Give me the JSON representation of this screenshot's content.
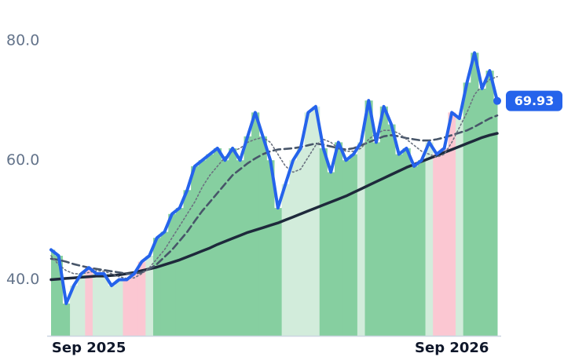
{
  "chart_data": {
    "type": "line",
    "categories": [
      null,
      null,
      null,
      null,
      null,
      "Sep 2025",
      null,
      null,
      null,
      null,
      null,
      null,
      null,
      null,
      null,
      null,
      null,
      null,
      null,
      null,
      null,
      null,
      null,
      null,
      null,
      null,
      null,
      null,
      null,
      null,
      null,
      null,
      null,
      null,
      null,
      null,
      null,
      null,
      null,
      null,
      null,
      null,
      null,
      null,
      null,
      null,
      null,
      null,
      null,
      null,
      null,
      null,
      null,
      "Sep 2026",
      null,
      null,
      null,
      null,
      null,
      null
    ],
    "series": [
      {
        "color": "#2563eb",
        "style": "solid",
        "values": [
          45,
          44,
          36,
          39,
          41,
          42,
          41,
          41,
          39,
          40,
          40,
          41,
          43,
          44,
          47,
          48,
          51,
          52,
          55,
          59,
          60,
          61,
          62,
          60,
          62,
          60,
          64,
          68,
          64,
          60,
          52,
          56,
          60,
          62,
          68,
          69,
          62,
          58,
          63,
          60,
          61,
          63,
          70,
          63,
          69,
          66,
          61,
          62,
          59,
          60,
          63,
          61,
          62,
          68,
          67,
          73,
          78,
          72,
          75,
          69.93
        ],
        "value_labels": [
          null,
          null,
          null,
          null,
          null,
          null,
          null,
          null,
          null,
          null,
          null,
          null,
          null,
          null,
          null,
          null,
          null,
          null,
          null,
          null,
          null,
          null,
          null,
          null,
          null,
          null,
          null,
          null,
          null,
          null,
          null,
          null,
          null,
          null,
          null,
          null,
          null,
          null,
          null,
          null,
          null,
          null,
          null,
          null,
          null,
          null,
          null,
          null,
          null,
          null,
          null,
          null,
          null,
          null,
          null,
          null,
          null,
          null,
          null,
          "69.93"
        ]
      },
      {
        "color": "#6b7280",
        "style": "dotted",
        "values": [
          44,
          42.5,
          41.5,
          41,
          41,
          41.2,
          41.5,
          41.4,
          41,
          40.5,
          40.2,
          40.3,
          41,
          42,
          43.5,
          45,
          47,
          49,
          51,
          53,
          55.5,
          57.5,
          59,
          60.5,
          61.5,
          62,
          63,
          63.5,
          63.8,
          63,
          61,
          59,
          58,
          58.5,
          60.5,
          62.5,
          63.5,
          63,
          62,
          61.5,
          61.5,
          62,
          63.5,
          64.5,
          65,
          65,
          64.5,
          63.5,
          62.5,
          61.5,
          61,
          60.5,
          61,
          63,
          65.5,
          68,
          71,
          72.5,
          73.5,
          74
        ]
      },
      {
        "color": "#475569",
        "style": "dashed",
        "values": [
          43.5,
          43.3,
          43.0,
          42.6,
          42.3,
          42.0,
          41.8,
          41.6,
          41.4,
          41.2,
          41.0,
          41.0,
          41.2,
          41.8,
          42.6,
          43.8,
          45.0,
          46.5,
          48.0,
          49.8,
          51.5,
          53.0,
          54.5,
          56.0,
          57.5,
          58.5,
          59.5,
          60.3,
          61.0,
          61.5,
          61.8,
          61.9,
          62.0,
          62.2,
          62.5,
          62.8,
          62.6,
          62.3,
          62.0,
          61.8,
          62.0,
          62.5,
          63.0,
          63.5,
          64.0,
          64.2,
          64.0,
          63.7,
          63.5,
          63.3,
          63.3,
          63.5,
          63.8,
          64.2,
          64.6,
          65.0,
          65.6,
          66.3,
          67.0,
          67.5
        ]
      },
      {
        "color": "#1e293b",
        "style": "solid-thin",
        "values": [
          40.0,
          40.1,
          40.2,
          40.3,
          40.4,
          40.5,
          40.6,
          40.6,
          40.7,
          40.8,
          41.0,
          41.2,
          41.5,
          41.8,
          42.1,
          42.5,
          42.9,
          43.3,
          43.8,
          44.3,
          44.8,
          45.3,
          45.9,
          46.4,
          46.9,
          47.4,
          47.9,
          48.3,
          48.7,
          49.1,
          49.5,
          50.0,
          50.5,
          51.0,
          51.5,
          52.0,
          52.5,
          53.0,
          53.5,
          54.0,
          54.6,
          55.2,
          55.8,
          56.4,
          57.0,
          57.6,
          58.2,
          58.8,
          59.3,
          59.8,
          60.3,
          60.8,
          61.3,
          61.8,
          62.3,
          62.8,
          63.3,
          63.8,
          64.2,
          64.5
        ]
      }
    ],
    "band_colors": [
      "#86cfa0",
      "#86cfa0",
      "#86cfa0",
      "#d2ecdb",
      "#d2ecdb",
      "#fbc7d2",
      "#d2ecdb",
      "#d2ecdb",
      "#d2ecdb",
      "#d2ecdb",
      "#fbc7d2",
      "#fbc7d2",
      "#fbc7d2",
      "#d2ecdb",
      "#86cfa0",
      "#86cfa0",
      "#86cfa0",
      "#86cfa0",
      "#86cfa0",
      "#86cfa0",
      "#86cfa0",
      "#86cfa0",
      "#86cfa0",
      "#86cfa0",
      "#86cfa0",
      "#86cfa0",
      "#86cfa0",
      "#86cfa0",
      "#86cfa0",
      "#86cfa0",
      "#86cfa0",
      "#d2ecdb",
      "#d2ecdb",
      "#d2ecdb",
      "#d2ecdb",
      "#d2ecdb",
      "#86cfa0",
      "#86cfa0",
      "#86cfa0",
      "#86cfa0",
      "#86cfa0",
      "#d2ecdb",
      "#86cfa0",
      "#86cfa0",
      "#86cfa0",
      "#86cfa0",
      "#86cfa0",
      "#86cfa0",
      "#86cfa0",
      "#86cfa0",
      "#d2ecdb",
      "#fbc7d2",
      "#fbc7d2",
      "#fbc7d2",
      "#d2ecdb",
      "#86cfa0",
      "#86cfa0",
      "#86cfa0",
      "#86cfa0",
      "#86cfa0"
    ],
    "ylim": [
      30.6,
      84
    ],
    "yticks": [
      {
        "value": 40,
        "label": "40.0"
      },
      {
        "value": 60,
        "label": "60.0"
      },
      {
        "value": 80,
        "label": "80.0"
      }
    ],
    "grid": false
  }
}
